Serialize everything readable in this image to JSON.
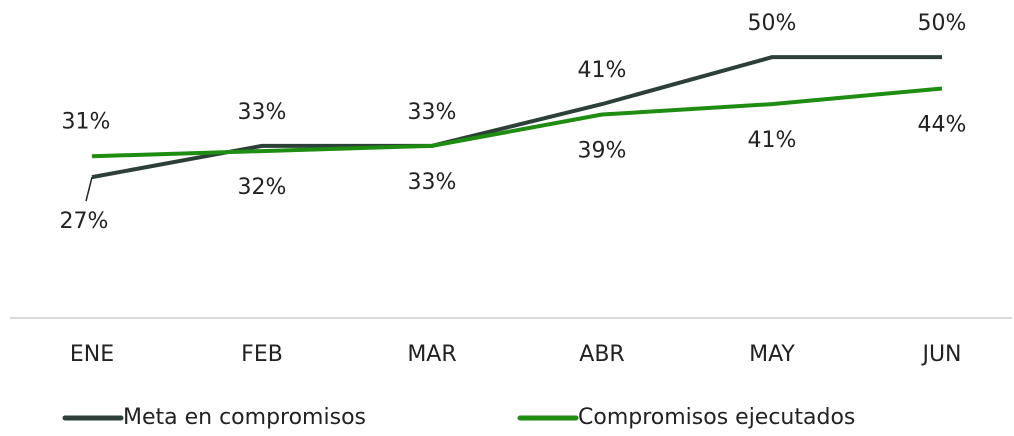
{
  "chart_data": {
    "type": "line",
    "categories": [
      "ENE",
      "FEB",
      "MAR",
      "ABR",
      "MAY",
      "JUN"
    ],
    "series": [
      {
        "name": "Meta en compromisos",
        "color": "#2d4038",
        "values": [
          27,
          33,
          33,
          41,
          50,
          50
        ],
        "value_labels": [
          "27%",
          "33%",
          "33%",
          "41%",
          "50%",
          "50%"
        ]
      },
      {
        "name": "Compromisos ejecutados",
        "color": "#1f8c12",
        "values": [
          31,
          32,
          33,
          39,
          41,
          44
        ],
        "value_labels": [
          "31%",
          "32%",
          "33%",
          "39%",
          "41%",
          "44%"
        ]
      }
    ],
    "ylim": [
      0,
      60
    ]
  }
}
